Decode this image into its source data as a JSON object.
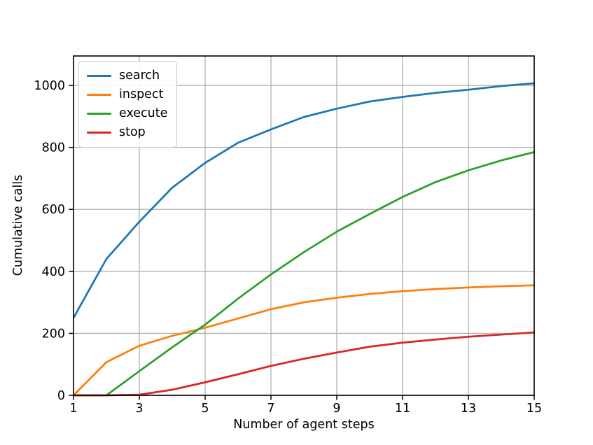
{
  "chart_data": {
    "type": "line",
    "title": "",
    "xlabel": "Number of agent steps",
    "ylabel": "Cumulative calls",
    "x": [
      1,
      2,
      3,
      4,
      5,
      6,
      7,
      8,
      9,
      10,
      11,
      12,
      13,
      14,
      15
    ],
    "series": [
      {
        "name": "search",
        "color": "#1f77b4",
        "values": [
          250,
          440,
          560,
          670,
          750,
          815,
          858,
          898,
          925,
          948,
          963,
          976,
          986,
          998,
          1007
        ]
      },
      {
        "name": "inspect",
        "color": "#ff7f0e",
        "values": [
          0,
          107,
          160,
          192,
          218,
          248,
          278,
          300,
          315,
          327,
          336,
          343,
          348,
          352,
          355
        ]
      },
      {
        "name": "execute",
        "color": "#2ca02c",
        "values": [
          0,
          0,
          78,
          155,
          228,
          312,
          390,
          462,
          528,
          585,
          640,
          688,
          726,
          758,
          785
        ]
      },
      {
        "name": "stop",
        "color": "#d62728",
        "values": [
          0,
          0,
          2,
          18,
          42,
          68,
          95,
          118,
          138,
          157,
          170,
          180,
          189,
          196,
          203
        ]
      }
    ],
    "xticks": [
      1,
      3,
      5,
      7,
      9,
      11,
      13,
      15
    ],
    "yticks": [
      0,
      200,
      400,
      600,
      800,
      1000
    ],
    "xlim": [
      1,
      15
    ],
    "ylim": [
      0,
      1095
    ],
    "grid": true,
    "legend_position": "upper left"
  },
  "colors": {
    "grid": "#b0b0b0",
    "axis": "#000000",
    "background": "#ffffff"
  }
}
